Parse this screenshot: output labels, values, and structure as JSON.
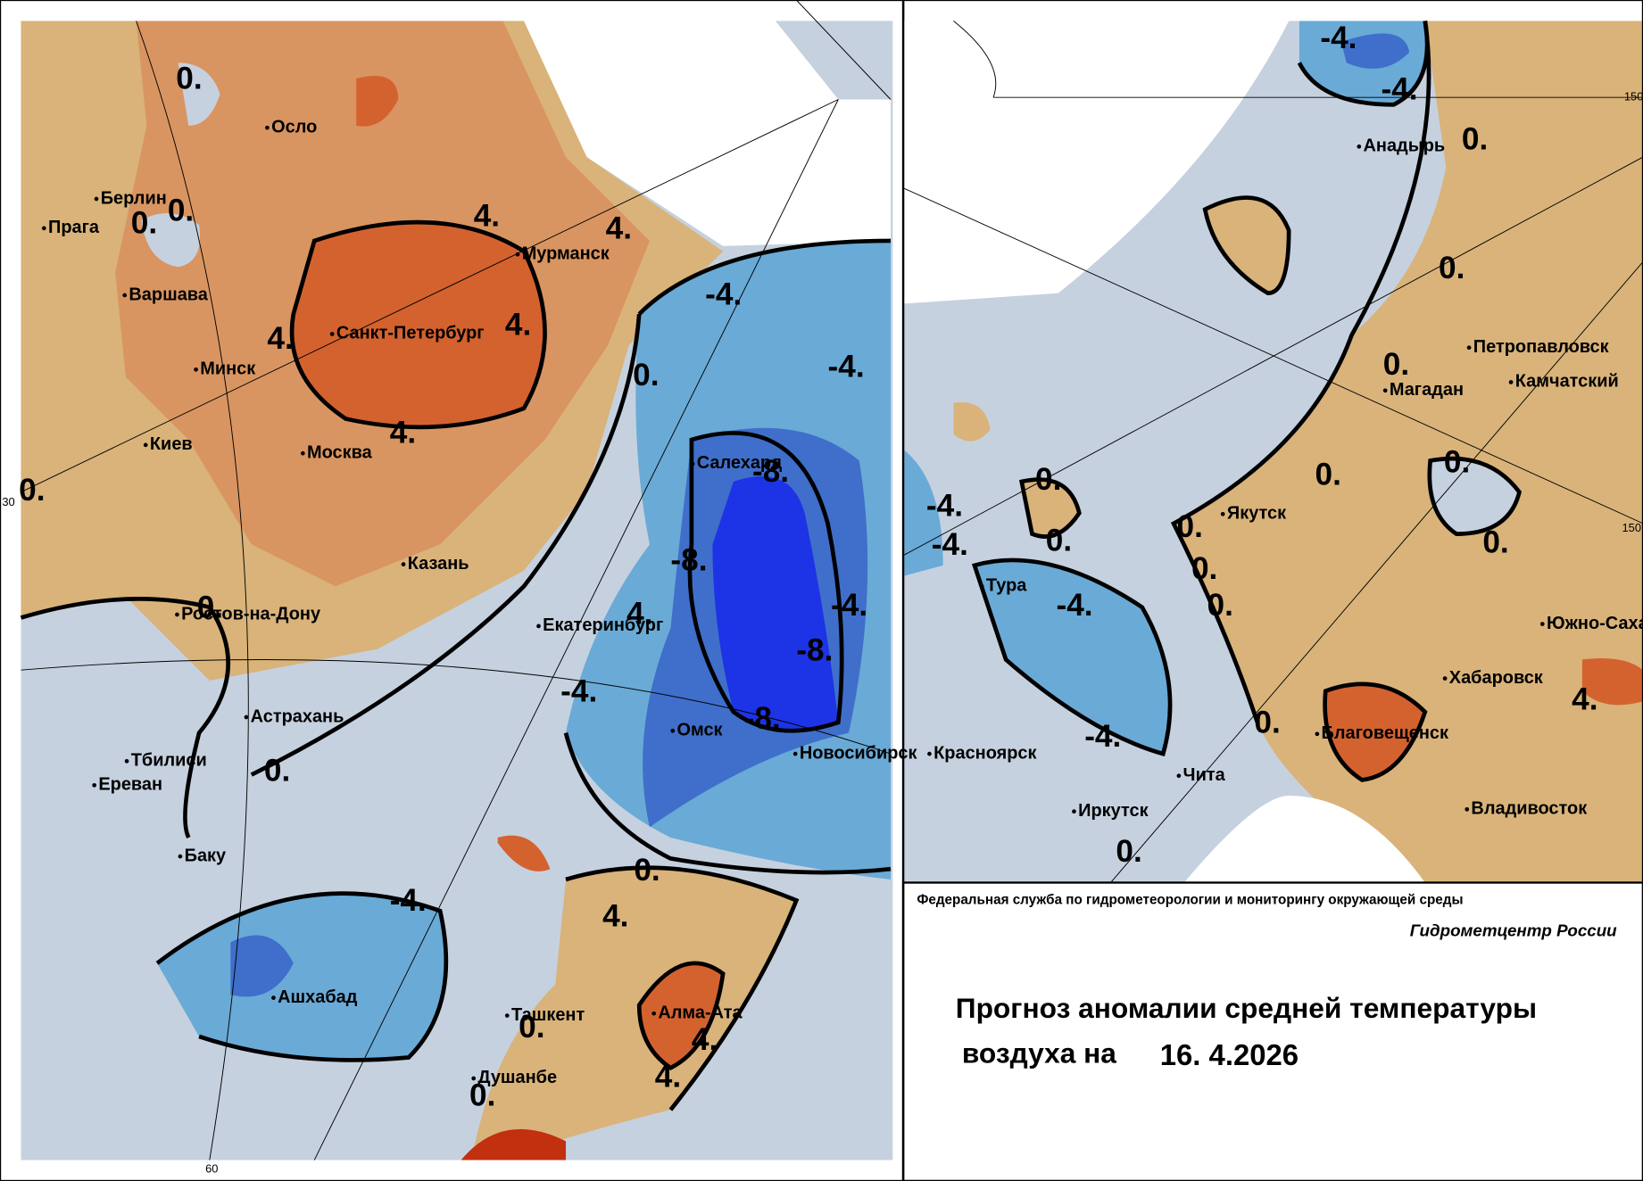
{
  "left_map": {
    "cities": [
      "Осло",
      "Берлин",
      "Прага",
      "Варшава",
      "Минск",
      "Киев",
      "Москва",
      "Санкт-Петербург",
      "Мурманск",
      "Салехард",
      "Казань",
      "Ростов-на-Дону",
      "Екатеринбург",
      "Астрахань",
      "Омск",
      "Новосибирск",
      "Тбилиси",
      "Ереван",
      "Баку",
      "Ашхабад",
      "Ташкент",
      "Алма-Ата",
      "Душанбе"
    ],
    "contour_labels": [
      "0.",
      "0.",
      "0.",
      "4.",
      "4.",
      "4.",
      "4.",
      "4.",
      "-4.",
      "0.",
      "-4.",
      "-8.",
      "-8.",
      "-8.",
      "-8.",
      "-4.",
      "4.",
      "-4.",
      "0.",
      "0.",
      "0.",
      "-4.",
      "0.",
      "4.",
      "4.",
      "4.",
      "0.",
      "0."
    ],
    "grid_labels": [
      "30",
      "60"
    ]
  },
  "right_map": {
    "cities": [
      "Анадырь",
      "Петропавловск",
      "Камчатский",
      "Магадан",
      "Якутск",
      "Тура",
      "Южно-Сахалинск",
      "Хабаровск",
      "Благовещенск",
      "Красноярск",
      "Чита",
      "Иркутск",
      "Владивосток"
    ],
    "contour_labels": [
      "-4.",
      "-4.",
      "0.",
      "0.",
      "0.",
      "0.",
      "0.",
      "0.",
      "0.",
      "0.",
      "0.",
      "-4.",
      "-4.",
      "0.",
      "0.",
      "-4.",
      "-4.",
      "0.",
      "4.",
      "0."
    ],
    "grid_labels": [
      "150",
      "150"
    ]
  },
  "footer": {
    "agency": "Федеральная служба по гидрометеорологии и мониторингу окружающей среды",
    "center": "Гидрометцентр России",
    "title_line1": "Прогноз аномалии средней температуры",
    "title_line2": "воздуха на",
    "date": "16. 4.2026"
  }
}
